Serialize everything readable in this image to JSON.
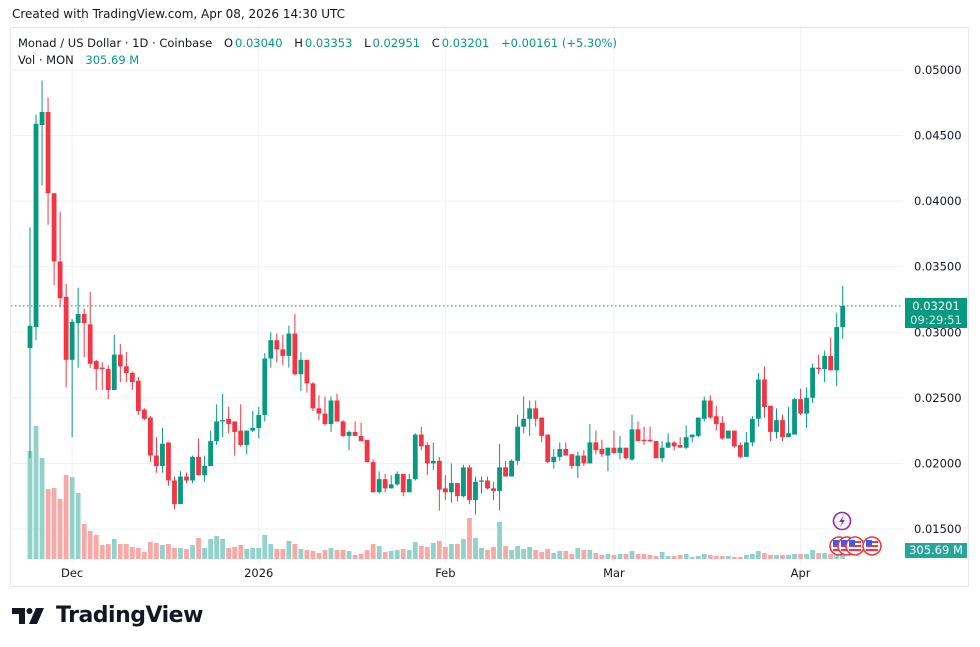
{
  "header": {
    "created": "Created with TradingView.com, Apr 08, 2026 14:30 UTC"
  },
  "legend": {
    "symbol": "Monad / US Dollar · 1D · Coinbase",
    "o_label": "O",
    "o": "0.03040",
    "h_label": "H",
    "h": "0.03353",
    "l_label": "L",
    "l": "0.02951",
    "c_label": "C",
    "c": "0.03201",
    "change": "+0.00161 (+5.30%)",
    "vol_label": "Vol · MON",
    "vol": "305.69 M"
  },
  "price_tag": {
    "price": "0.03201",
    "countdown": "09:29:51"
  },
  "volume_tag": "305.69 M",
  "branding": {
    "logo_text": "TradingView"
  },
  "colors": {
    "up": "#089981",
    "down": "#f23645",
    "vol_up": "#92d2cb",
    "vol_down": "#f7a9a8",
    "grid": "#f0f1f4"
  },
  "chart_data": {
    "type": "candlestick",
    "title": "Monad / US Dollar · 1D · Coinbase",
    "interval": "1D",
    "start_date": "2025-11-24",
    "end_date": "2026-04-08",
    "ylim": [
      0.0125,
      0.0513
    ],
    "y_ticks": [
      {
        "value": 0.05,
        "label": "0.05000"
      },
      {
        "value": 0.045,
        "label": "0.04500"
      },
      {
        "value": 0.04,
        "label": "0.04000"
      },
      {
        "value": 0.035,
        "label": "0.03500"
      },
      {
        "value": 0.03,
        "label": "0.03000"
      },
      {
        "value": 0.025,
        "label": "0.02500"
      },
      {
        "value": 0.02,
        "label": "0.02000"
      },
      {
        "value": 0.015,
        "label": "0.01500"
      }
    ],
    "x_ticks": [
      {
        "index": 7,
        "label": "Dec"
      },
      {
        "index": 38,
        "label": "2026"
      },
      {
        "index": 69,
        "label": "Feb"
      },
      {
        "index": 97,
        "label": "Mar"
      },
      {
        "index": 128,
        "label": "Apr"
      }
    ],
    "last_price": 0.03201,
    "grid": true,
    "ohlc": [
      [
        0.0288,
        0.038,
        0.0204,
        0.0305
      ],
      [
        0.0304,
        0.0466,
        0.0294,
        0.0459
      ],
      [
        0.0458,
        0.0492,
        0.0412,
        0.0468
      ],
      [
        0.0468,
        0.0479,
        0.0382,
        0.0406
      ],
      [
        0.0406,
        0.0406,
        0.0336,
        0.0354
      ],
      [
        0.0354,
        0.0392,
        0.0319,
        0.0326
      ],
      [
        0.0327,
        0.0337,
        0.0258,
        0.0279
      ],
      [
        0.0279,
        0.031,
        0.022,
        0.0308
      ],
      [
        0.0307,
        0.0334,
        0.0273,
        0.0314
      ],
      [
        0.0314,
        0.0318,
        0.0281,
        0.0307
      ],
      [
        0.0306,
        0.0331,
        0.0273,
        0.0276
      ],
      [
        0.0278,
        0.0279,
        0.0256,
        0.0272
      ],
      [
        0.0273,
        0.0277,
        0.0256,
        0.0272
      ],
      [
        0.0272,
        0.0275,
        0.0249,
        0.0256
      ],
      [
        0.0256,
        0.0298,
        0.0256,
        0.0283
      ],
      [
        0.0283,
        0.0291,
        0.0262,
        0.0274
      ],
      [
        0.0274,
        0.0285,
        0.0262,
        0.0269
      ],
      [
        0.0269,
        0.027,
        0.0256,
        0.0262
      ],
      [
        0.0263,
        0.0266,
        0.0237,
        0.024
      ],
      [
        0.0241,
        0.0242,
        0.0233,
        0.0234
      ],
      [
        0.0235,
        0.0236,
        0.0201,
        0.0206
      ],
      [
        0.0206,
        0.022,
        0.0193,
        0.0198
      ],
      [
        0.0198,
        0.0227,
        0.0193,
        0.0215
      ],
      [
        0.0216,
        0.0216,
        0.0183,
        0.0187
      ],
      [
        0.0187,
        0.019,
        0.0165,
        0.0169
      ],
      [
        0.0169,
        0.0194,
        0.0169,
        0.019
      ],
      [
        0.019,
        0.0193,
        0.0185,
        0.0187
      ],
      [
        0.0187,
        0.0206,
        0.0185,
        0.0205
      ],
      [
        0.0205,
        0.0219,
        0.0191,
        0.0191
      ],
      [
        0.0191,
        0.0206,
        0.0186,
        0.0198
      ],
      [
        0.0198,
        0.0225,
        0.0198,
        0.0217
      ],
      [
        0.0217,
        0.0245,
        0.0214,
        0.0232
      ],
      [
        0.0232,
        0.0253,
        0.022,
        0.0233
      ],
      [
        0.0234,
        0.0243,
        0.0223,
        0.023
      ],
      [
        0.0232,
        0.0232,
        0.0206,
        0.0224
      ],
      [
        0.0225,
        0.0245,
        0.0213,
        0.0214
      ],
      [
        0.0214,
        0.0225,
        0.0207,
        0.0225
      ],
      [
        0.0225,
        0.024,
        0.0224,
        0.0227
      ],
      [
        0.0227,
        0.0243,
        0.0219,
        0.0237
      ],
      [
        0.0237,
        0.0284,
        0.0232,
        0.028
      ],
      [
        0.028,
        0.03,
        0.0273,
        0.0294
      ],
      [
        0.0294,
        0.0299,
        0.0277,
        0.0287
      ],
      [
        0.0287,
        0.0298,
        0.0275,
        0.0282
      ],
      [
        0.0282,
        0.0305,
        0.0273,
        0.0299
      ],
      [
        0.0299,
        0.0314,
        0.0267,
        0.0268
      ],
      [
        0.0268,
        0.0285,
        0.0255,
        0.0279
      ],
      [
        0.0279,
        0.0279,
        0.0254,
        0.0261
      ],
      [
        0.0261,
        0.0262,
        0.024,
        0.0242
      ],
      [
        0.0242,
        0.0252,
        0.0233,
        0.0238
      ],
      [
        0.0238,
        0.0251,
        0.0229,
        0.023
      ],
      [
        0.023,
        0.0251,
        0.0224,
        0.0248
      ],
      [
        0.0248,
        0.0253,
        0.0232,
        0.0232
      ],
      [
        0.0232,
        0.0233,
        0.022,
        0.0221
      ],
      [
        0.0221,
        0.0225,
        0.021,
        0.0224
      ],
      [
        0.0224,
        0.0232,
        0.0221,
        0.0221
      ],
      [
        0.0221,
        0.0231,
        0.0217,
        0.0217
      ],
      [
        0.0218,
        0.0218,
        0.0201,
        0.0201
      ],
      [
        0.0201,
        0.0203,
        0.0178,
        0.0178
      ],
      [
        0.0178,
        0.0194,
        0.0177,
        0.0188
      ],
      [
        0.0188,
        0.0192,
        0.0178,
        0.0181
      ],
      [
        0.0181,
        0.0191,
        0.0181,
        0.0184
      ],
      [
        0.0184,
        0.0194,
        0.0183,
        0.0192
      ],
      [
        0.0192,
        0.0192,
        0.0175,
        0.0178
      ],
      [
        0.0178,
        0.0192,
        0.0178,
        0.0188
      ],
      [
        0.0188,
        0.0223,
        0.0187,
        0.0222
      ],
      [
        0.0222,
        0.0228,
        0.021,
        0.0213
      ],
      [
        0.0214,
        0.0216,
        0.0191,
        0.02
      ],
      [
        0.02,
        0.0216,
        0.0195,
        0.0202
      ],
      [
        0.0202,
        0.0205,
        0.0164,
        0.018
      ],
      [
        0.0181,
        0.0191,
        0.0172,
        0.0178
      ],
      [
        0.0178,
        0.02,
        0.017,
        0.0185
      ],
      [
        0.0185,
        0.0185,
        0.0171,
        0.0175
      ],
      [
        0.0175,
        0.0199,
        0.0174,
        0.0197
      ],
      [
        0.0197,
        0.0199,
        0.0169,
        0.0172
      ],
      [
        0.0172,
        0.019,
        0.0161,
        0.0186
      ],
      [
        0.0186,
        0.019,
        0.0177,
        0.0187
      ],
      [
        0.0187,
        0.019,
        0.018,
        0.0181
      ],
      [
        0.0181,
        0.0186,
        0.0172,
        0.0179
      ],
      [
        0.0179,
        0.0215,
        0.0164,
        0.0197
      ],
      [
        0.0197,
        0.0202,
        0.019,
        0.019
      ],
      [
        0.019,
        0.0203,
        0.019,
        0.0202
      ],
      [
        0.0202,
        0.0237,
        0.0199,
        0.0228
      ],
      [
        0.0228,
        0.0251,
        0.0223,
        0.0234
      ],
      [
        0.0234,
        0.0248,
        0.0221,
        0.0242
      ],
      [
        0.0242,
        0.0248,
        0.0228,
        0.0234
      ],
      [
        0.0235,
        0.0235,
        0.0216,
        0.0221
      ],
      [
        0.0222,
        0.0222,
        0.02,
        0.0201
      ],
      [
        0.0201,
        0.0211,
        0.0196,
        0.0205
      ],
      [
        0.0205,
        0.0216,
        0.0202,
        0.0211
      ],
      [
        0.0211,
        0.0216,
        0.0206,
        0.0206
      ],
      [
        0.0207,
        0.0207,
        0.0196,
        0.0198
      ],
      [
        0.0198,
        0.0209,
        0.0189,
        0.0206
      ],
      [
        0.0206,
        0.021,
        0.0198,
        0.02
      ],
      [
        0.02,
        0.023,
        0.02,
        0.0216
      ],
      [
        0.0216,
        0.0225,
        0.0207,
        0.021
      ],
      [
        0.0211,
        0.0218,
        0.0205,
        0.0207
      ],
      [
        0.0206,
        0.0212,
        0.0194,
        0.0212
      ],
      [
        0.0212,
        0.0225,
        0.0207,
        0.0208
      ],
      [
        0.0208,
        0.0221,
        0.0203,
        0.0212
      ],
      [
        0.0212,
        0.0212,
        0.0203,
        0.0204
      ],
      [
        0.0203,
        0.0237,
        0.0202,
        0.0226
      ],
      [
        0.0226,
        0.0232,
        0.0217,
        0.0217
      ],
      [
        0.0218,
        0.0228,
        0.0214,
        0.0217
      ],
      [
        0.0218,
        0.0228,
        0.0216,
        0.0217
      ],
      [
        0.0217,
        0.0217,
        0.0204,
        0.0204
      ],
      [
        0.0204,
        0.0217,
        0.0201,
        0.0212
      ],
      [
        0.0212,
        0.0223,
        0.0212,
        0.0216
      ],
      [
        0.0216,
        0.0217,
        0.021,
        0.0213
      ],
      [
        0.0214,
        0.022,
        0.0212,
        0.0212
      ],
      [
        0.0212,
        0.0229,
        0.0211,
        0.022
      ],
      [
        0.022,
        0.0222,
        0.0216,
        0.0222
      ],
      [
        0.0221,
        0.0235,
        0.022,
        0.0235
      ],
      [
        0.0234,
        0.0251,
        0.0232,
        0.0248
      ],
      [
        0.0248,
        0.0252,
        0.0234,
        0.0235
      ],
      [
        0.0236,
        0.0244,
        0.0225,
        0.023
      ],
      [
        0.0231,
        0.0236,
        0.0218,
        0.0219
      ],
      [
        0.0219,
        0.0225,
        0.0219,
        0.0225
      ],
      [
        0.0225,
        0.0225,
        0.0212,
        0.0213
      ],
      [
        0.0214,
        0.0216,
        0.0204,
        0.0205
      ],
      [
        0.0205,
        0.0224,
        0.0205,
        0.0216
      ],
      [
        0.0216,
        0.0236,
        0.0213,
        0.0234
      ],
      [
        0.0234,
        0.0269,
        0.0228,
        0.0264
      ],
      [
        0.0264,
        0.0274,
        0.0235,
        0.0243
      ],
      [
        0.0244,
        0.0244,
        0.0217,
        0.0224
      ],
      [
        0.0224,
        0.0242,
        0.0219,
        0.0233
      ],
      [
        0.0233,
        0.0237,
        0.0217,
        0.022
      ],
      [
        0.022,
        0.0243,
        0.022,
        0.0223
      ],
      [
        0.0222,
        0.025,
        0.0222,
        0.0249
      ],
      [
        0.0249,
        0.0257,
        0.0237,
        0.0238
      ],
      [
        0.0238,
        0.0258,
        0.0227,
        0.025
      ],
      [
        0.025,
        0.0276,
        0.0246,
        0.0273
      ],
      [
        0.0273,
        0.0283,
        0.0268,
        0.0272
      ],
      [
        0.0272,
        0.0286,
        0.0262,
        0.0282
      ],
      [
        0.0282,
        0.0296,
        0.0271,
        0.0271
      ],
      [
        0.0271,
        0.0315,
        0.0259,
        0.0304
      ],
      [
        0.0304,
        0.03353,
        0.02951,
        0.03201
      ]
    ],
    "volume_unit": "M",
    "volume": [
      6603,
      8132,
      6175,
      4280,
      4341,
      3668,
      5136,
      5013,
      4035,
      2140,
      1712,
      1467,
      856,
      917,
      1223,
      917,
      917,
      734,
      673,
      428,
      1039,
      978,
      856,
      917,
      673,
      673,
      611,
      856,
      1284,
      673,
      1223,
      1406,
      1223,
      673,
      734,
      856,
      611,
      673,
      673,
      1467,
      917,
      611,
      611,
      1100,
      917,
      611,
      550,
      489,
      367,
      550,
      673,
      550,
      550,
      489,
      245,
      306,
      550,
      917,
      795,
      428,
      489,
      550,
      611,
      550,
      1039,
      795,
      734,
      978,
      1100,
      734,
      917,
      917,
      1223,
      2507,
      1284,
      673,
      550,
      734,
      2262,
      795,
      550,
      795,
      611,
      734,
      550,
      428,
      611,
      367,
      489,
      489,
      306,
      673,
      550,
      550,
      367,
      245,
      306,
      245,
      306,
      306,
      489,
      306,
      306,
      245,
      183,
      428,
      183,
      183,
      245,
      306,
      122,
      183,
      306,
      245,
      183,
      183,
      183,
      122,
      122,
      245,
      306,
      489,
      367,
      245,
      245,
      245,
      245,
      306,
      306,
      306,
      550,
      367,
      367,
      306,
      346,
      305.69
    ]
  }
}
